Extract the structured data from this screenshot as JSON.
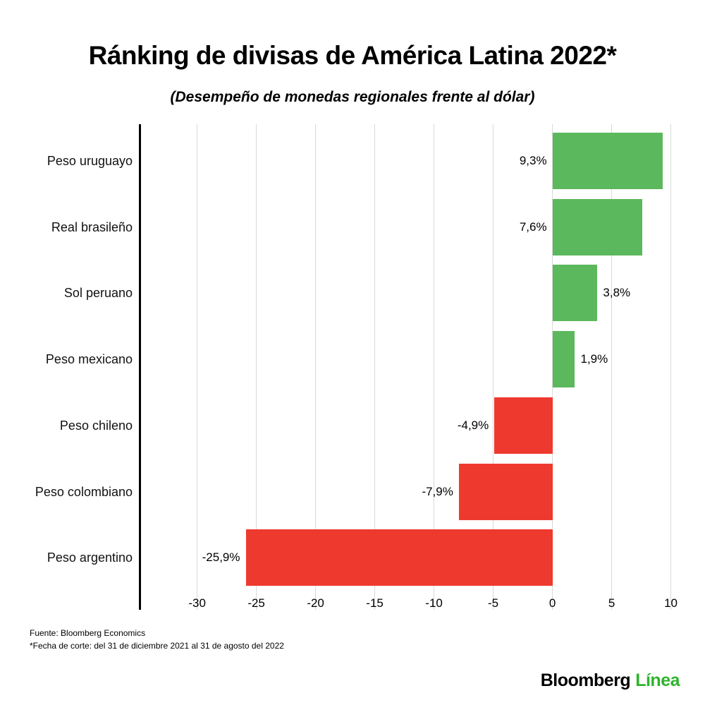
{
  "chart_data": {
    "type": "bar",
    "orientation": "horizontal",
    "title": "Ránking de divisas de América Latina 2022*",
    "subtitle": "(Desempeño de monedas regionales frente al dólar)",
    "categories": [
      "Peso uruguayo",
      "Real brasileño",
      "Sol peruano",
      "Peso mexicano",
      "Peso chileno",
      "Peso colombiano",
      "Peso argentino"
    ],
    "values": [
      9.3,
      7.6,
      3.8,
      1.9,
      -4.9,
      -7.9,
      -25.9
    ],
    "value_labels": [
      "9,3%",
      "7,6%",
      "3,8%",
      "1,9%",
      "-4,9%",
      "-7,9%",
      "-25,9%"
    ],
    "x_ticks": [
      -30,
      -25,
      -20,
      -15,
      -10,
      -5,
      0,
      5,
      10
    ],
    "x_tick_labels": [
      "-30",
      "-25",
      "-20",
      "-15",
      "-10",
      "-5",
      "0",
      "5",
      "10"
    ],
    "xlim": [
      -34.8,
      10.8
    ],
    "grid": true,
    "positive_color": "#5cb85c",
    "negative_color": "#ee3a2e",
    "axis_color": "#000000",
    "grid_color": "#d9d9d9"
  },
  "footer": {
    "source": "Fuente: Bloomberg Economics",
    "footnote": "*Fecha de corte: del 31 de diciembre 2021 al 31 de agosto del 2022"
  },
  "logo": {
    "bloomberg": "Bloomberg",
    "linea": "Línea",
    "bloomberg_color": "#000000",
    "linea_color": "#2db52b"
  }
}
